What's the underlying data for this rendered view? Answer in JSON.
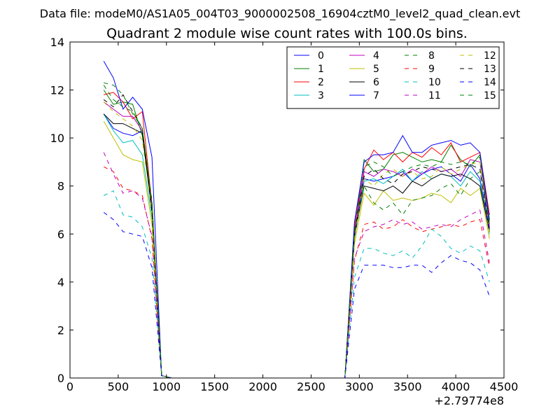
{
  "suptitle": "Data file: modeM0/AS1A05_004T03_9000002508_16904cztM0_level2_quad_clean.evt",
  "chart_data": {
    "type": "line",
    "title": "Quadrant 2 module wise count rates with 100.0s bins.",
    "xlabel": "",
    "ylabel": "",
    "x_offset_label": "+2.79774e8",
    "xlim": [
      0,
      4500
    ],
    "ylim": [
      0,
      14
    ],
    "xticks": [
      0,
      500,
      1000,
      1500,
      2000,
      2500,
      3000,
      3500,
      4000,
      4500
    ],
    "yticks": [
      0,
      2,
      4,
      6,
      8,
      10,
      12,
      14
    ],
    "grid": false,
    "legend_position": "top-right",
    "legend_columns": 4,
    "x": [
      350,
      450,
      550,
      650,
      750,
      850,
      950,
      1050,
      1150,
      1250,
      1350,
      1450,
      1550,
      1650,
      1750,
      1850,
      1950,
      2050,
      2150,
      2250,
      2350,
      2450,
      2550,
      2650,
      2750,
      2850,
      2950,
      3050,
      3150,
      3250,
      3350,
      3450,
      3550,
      3650,
      3750,
      3850,
      3950,
      4050,
      4150,
      4250,
      4350
    ],
    "series": [
      {
        "name": "0",
        "color": "#0000ff",
        "dash": "solid",
        "values": [
          11.0,
          10.4,
          10.2,
          10.1,
          10.3,
          7.0,
          0.1,
          0,
          0,
          0,
          0,
          0,
          0,
          0,
          0,
          0,
          0,
          0,
          0,
          0,
          0,
          0,
          0,
          0,
          0,
          0,
          6.0,
          8.3,
          8.2,
          8.3,
          8.4,
          8.6,
          8.2,
          8.5,
          8.7,
          8.8,
          8.5,
          8.2,
          8.9,
          8.3,
          6.2
        ]
      },
      {
        "name": "1",
        "color": "#008000",
        "dash": "solid",
        "values": [
          12.0,
          11.4,
          11.5,
          11.4,
          10.1,
          7.2,
          0.1,
          0,
          0,
          0,
          0,
          0,
          0,
          0,
          0,
          0,
          0,
          0,
          0,
          0,
          0,
          0,
          0,
          0,
          0,
          0,
          6.2,
          9.1,
          8.6,
          8.7,
          9.3,
          9.4,
          9.2,
          9.0,
          9.1,
          9.0,
          9.7,
          9.1,
          8.8,
          9.3,
          6.5
        ]
      },
      {
        "name": "2",
        "color": "#ff0000",
        "dash": "solid",
        "values": [
          11.8,
          11.9,
          11.5,
          10.8,
          11.1,
          7.2,
          0.1,
          0,
          0,
          0,
          0,
          0,
          0,
          0,
          0,
          0,
          0,
          0,
          0,
          0,
          0,
          0,
          0,
          0,
          0,
          0,
          6.3,
          8.7,
          9.5,
          9.1,
          9.4,
          9.0,
          9.4,
          9.2,
          9.6,
          9.3,
          9.8,
          9.0,
          9.2,
          9.4,
          6.8
        ]
      },
      {
        "name": "3",
        "color": "#00bfbf",
        "dash": "solid",
        "values": [
          11.0,
          10.3,
          9.8,
          9.9,
          9.3,
          6.7,
          0.1,
          0,
          0,
          0,
          0,
          0,
          0,
          0,
          0,
          0,
          0,
          0,
          0,
          0,
          0,
          0,
          0,
          0,
          0,
          0,
          5.8,
          8.2,
          8.3,
          8.1,
          8.4,
          8.7,
          8.2,
          8.6,
          8.3,
          8.5,
          8.4,
          8.0,
          8.6,
          8.2,
          6.0
        ]
      },
      {
        "name": "4",
        "color": "#bf00bf",
        "dash": "solid",
        "values": [
          11.5,
          11.2,
          10.9,
          10.9,
          10.3,
          7.0,
          0.1,
          0,
          0,
          0,
          0,
          0,
          0,
          0,
          0,
          0,
          0,
          0,
          0,
          0,
          0,
          0,
          0,
          0,
          0,
          0,
          6.0,
          8.6,
          8.4,
          8.7,
          8.6,
          8.4,
          8.7,
          8.5,
          8.8,
          8.6,
          8.7,
          8.4,
          9.1,
          9.0,
          6.3
        ]
      },
      {
        "name": "5",
        "color": "#bfbf00",
        "dash": "solid",
        "values": [
          10.7,
          10.0,
          9.3,
          9.1,
          9.0,
          6.4,
          0.1,
          0,
          0,
          0,
          0,
          0,
          0,
          0,
          0,
          0,
          0,
          0,
          0,
          0,
          0,
          0,
          0,
          0,
          0,
          0,
          5.6,
          7.7,
          7.2,
          7.8,
          7.4,
          7.5,
          7.4,
          7.5,
          7.7,
          7.6,
          7.3,
          7.9,
          7.6,
          7.9,
          5.8
        ]
      },
      {
        "name": "6",
        "color": "#000000",
        "dash": "solid",
        "values": [
          11.0,
          10.6,
          10.6,
          10.4,
          10.2,
          6.9,
          0.1,
          0,
          0,
          0,
          0,
          0,
          0,
          0,
          0,
          0,
          0,
          0,
          0,
          0,
          0,
          0,
          0,
          0,
          0,
          0,
          5.9,
          8.0,
          7.9,
          7.8,
          8.0,
          7.7,
          8.2,
          8.0,
          8.3,
          8.5,
          8.4,
          8.5,
          8.3,
          8.0,
          6.1
        ]
      },
      {
        "name": "7",
        "color": "#0000ff",
        "dash": "solid",
        "values": [
          13.2,
          12.5,
          11.2,
          11.7,
          11.2,
          9.2,
          0.1,
          0,
          0,
          0,
          0,
          0,
          0,
          0,
          0,
          0,
          0,
          0,
          0,
          0,
          0,
          0,
          0,
          0,
          0,
          0,
          6.5,
          9.0,
          9.3,
          9.3,
          9.4,
          10.1,
          9.4,
          9.4,
          9.7,
          9.8,
          9.9,
          9.7,
          9.8,
          9.4,
          6.6
        ]
      },
      {
        "name": "8",
        "color": "#008000",
        "dash": "dashed",
        "values": [
          12.3,
          12.2,
          11.8,
          11.0,
          10.4,
          7.3,
          0.1,
          0,
          0,
          0,
          0,
          0,
          0,
          0,
          0,
          0,
          0,
          0,
          0,
          0,
          0,
          0,
          0,
          0,
          0,
          0,
          5.9,
          8.0,
          7.3,
          7.0,
          7.3,
          6.8,
          7.4,
          7.5,
          7.6,
          7.9,
          8.1,
          7.6,
          8.3,
          8.6,
          6.4
        ]
      },
      {
        "name": "9",
        "color": "#ff0000",
        "dash": "dashed",
        "values": [
          8.8,
          8.6,
          7.9,
          7.8,
          7.6,
          5.8,
          0.1,
          0,
          0,
          0,
          0,
          0,
          0,
          0,
          0,
          0,
          0,
          0,
          0,
          0,
          0,
          0,
          0,
          0,
          0,
          0,
          4.9,
          6.4,
          6.5,
          6.2,
          6.3,
          6.6,
          6.3,
          6.1,
          6.2,
          6.3,
          6.4,
          6.3,
          6.5,
          6.6,
          4.6
        ]
      },
      {
        "name": "10",
        "color": "#00bfbf",
        "dash": "dashed",
        "values": [
          7.6,
          7.8,
          6.8,
          6.7,
          6.3,
          5.0,
          0.1,
          0,
          0,
          0,
          0,
          0,
          0,
          0,
          0,
          0,
          0,
          0,
          0,
          0,
          0,
          0,
          0,
          0,
          0,
          0,
          4.2,
          5.4,
          5.4,
          5.2,
          5.1,
          5.3,
          5.0,
          5.5,
          6.2,
          5.9,
          5.4,
          5.2,
          5.5,
          5.3,
          4.0
        ]
      },
      {
        "name": "11",
        "color": "#bf00bf",
        "dash": "dashed",
        "values": [
          9.4,
          8.5,
          7.7,
          7.8,
          7.5,
          5.9,
          0.1,
          0,
          0,
          0,
          0,
          0,
          0,
          0,
          0,
          0,
          0,
          0,
          0,
          0,
          0,
          0,
          0,
          0,
          0,
          0,
          5.0,
          6.1,
          6.3,
          6.4,
          6.6,
          6.4,
          6.5,
          6.2,
          6.3,
          6.4,
          6.3,
          6.6,
          6.8,
          7.0,
          4.8
        ]
      },
      {
        "name": "12",
        "color": "#bfbf00",
        "dash": "dashed",
        "values": [
          11.5,
          11.1,
          10.8,
          10.5,
          9.9,
          6.9,
          0.1,
          0,
          0,
          0,
          0,
          0,
          0,
          0,
          0,
          0,
          0,
          0,
          0,
          0,
          0,
          0,
          0,
          0,
          0,
          0,
          5.8,
          8.3,
          8.0,
          8.5,
          8.7,
          8.4,
          8.6,
          8.3,
          8.4,
          8.8,
          8.5,
          8.7,
          8.9,
          9.0,
          6.0
        ]
      },
      {
        "name": "13",
        "color": "#000000",
        "dash": "dashed",
        "values": [
          11.6,
          11.3,
          11.8,
          11.1,
          10.4,
          7.1,
          0.1,
          0,
          0,
          0,
          0,
          0,
          0,
          0,
          0,
          0,
          0,
          0,
          0,
          0,
          0,
          0,
          0,
          0,
          0,
          0,
          6.0,
          8.4,
          8.7,
          8.3,
          8.1,
          8.5,
          8.6,
          8.8,
          8.7,
          8.6,
          8.7,
          8.8,
          8.9,
          8.7,
          6.2
        ]
      },
      {
        "name": "14",
        "color": "#0000ff",
        "dash": "dashed",
        "values": [
          6.9,
          6.6,
          6.1,
          6.0,
          5.9,
          4.6,
          0.1,
          0,
          0,
          0,
          0,
          0,
          0,
          0,
          0,
          0,
          0,
          0,
          0,
          0,
          0,
          0,
          0,
          0,
          0,
          0,
          3.7,
          4.7,
          4.7,
          4.7,
          4.6,
          4.6,
          4.7,
          4.7,
          4.4,
          4.8,
          5.1,
          4.9,
          4.8,
          4.5,
          3.4
        ]
      },
      {
        "name": "15",
        "color": "#008000",
        "dash": "dashed",
        "values": [
          12.2,
          11.6,
          11.3,
          11.1,
          10.4,
          7.4,
          0.1,
          0,
          0,
          0,
          0,
          0,
          0,
          0,
          0,
          0,
          0,
          0,
          0,
          0,
          0,
          0,
          0,
          0,
          0,
          0,
          6.1,
          8.8,
          9.0,
          8.8,
          8.4,
          8.6,
          8.8,
          8.9,
          8.8,
          9.0,
          8.9,
          9.0,
          8.9,
          9.2,
          6.4
        ]
      }
    ]
  }
}
